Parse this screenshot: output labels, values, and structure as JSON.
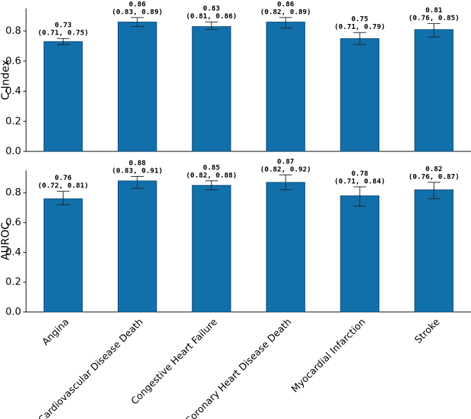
{
  "chart_data": [
    {
      "type": "bar",
      "y_label": "C-Index",
      "color": "#1170aa",
      "values": [
        0.73,
        0.86,
        0.83,
        0.86,
        0.75,
        0.81
      ],
      "lower": [
        0.71,
        0.83,
        0.81,
        0.82,
        0.71,
        0.76
      ],
      "upper": [
        0.75,
        0.89,
        0.86,
        0.89,
        0.79,
        0.85
      ],
      "ci_labels": [
        "(0.71, 0.75)",
        "(0.83, 0.89)",
        "(0.81, 0.86)",
        "(0.82, 0.89)",
        "(0.71, 0.79)",
        "(0.76, 0.85)"
      ],
      "ylim": [
        0,
        0.95
      ],
      "yticks": [
        {
          "value": 0,
          "label": "0.0"
        },
        0.2,
        0.4,
        0.6,
        0.8
      ]
    },
    {
      "type": "bar",
      "y_label": "AUROC",
      "color": "#1170aa",
      "categories": [
        "Angina",
        "Cardiovascular Disease Death",
        "Congestive Heart Failure",
        "Coronary Heart Disease Death",
        "Myocardial Infarction",
        "Stroke"
      ],
      "values": [
        0.76,
        0.88,
        0.85,
        0.87,
        0.78,
        0.82
      ],
      "lower": [
        0.72,
        0.83,
        0.82,
        0.82,
        0.71,
        0.76
      ],
      "upper": [
        0.81,
        0.91,
        0.88,
        0.92,
        0.84,
        0.87
      ],
      "ci_labels": [
        "(0.72, 0.81)",
        "(0.83, 0.91)",
        "(0.82, 0.88)",
        "(0.82, 0.92)",
        "(0.71, 0.84)",
        "(0.76, 0.87)"
      ],
      "ylim": [
        0,
        0.95
      ],
      "yticks": [
        {
          "value": 0,
          "label": "0.0"
        },
        0.2,
        0.4,
        0.6,
        0.8
      ]
    }
  ]
}
